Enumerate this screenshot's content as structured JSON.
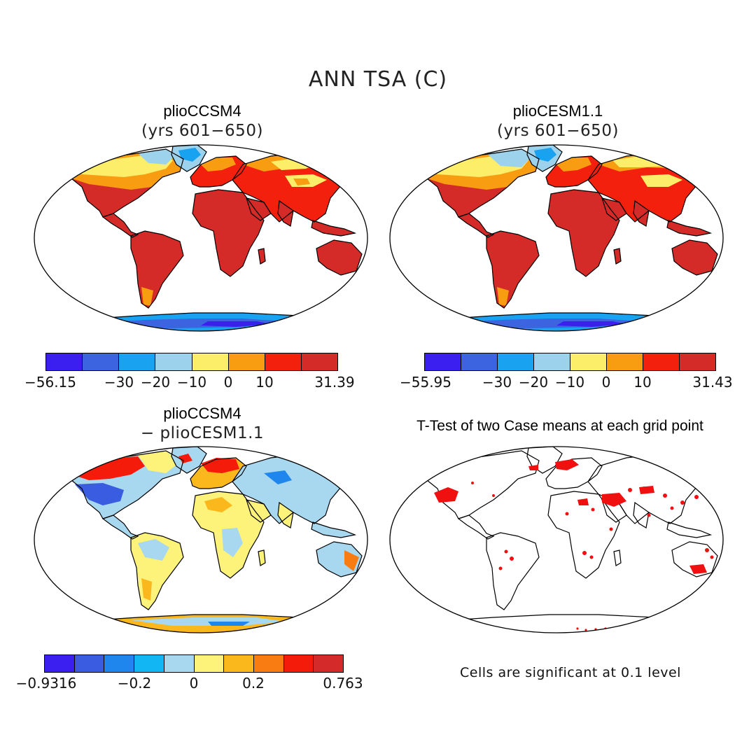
{
  "figure": {
    "title": "ANN TSA (C)",
    "panels": {
      "top_left": {
        "title": "plioCCSM4",
        "subtitle": "(yrs 601−650)"
      },
      "top_right": {
        "title": "plioCESM1.1",
        "subtitle": "(yrs 601−650)"
      },
      "bottom_left": {
        "title": "plioCCSM4",
        "subtitle": "− plioCESM1.1"
      },
      "bottom_right": {
        "title": "T-Test of two Case means at each grid point",
        "note": "Cells are significant at 0.1 level"
      }
    },
    "colorbars": {
      "cb1": {
        "colors": [
          "#3b1ff0",
          "#3d64e0",
          "#19a2f0",
          "#9dd2ec",
          "#fdee6a",
          "#f89d12",
          "#f4200e",
          "#d42a28"
        ],
        "labels": [
          "−56.15",
          "−30",
          "−20",
          "−10",
          "0",
          "10",
          "31.39"
        ]
      },
      "cb2": {
        "colors": [
          "#3b1ff0",
          "#3d64e0",
          "#19a2f0",
          "#9dd2ec",
          "#fdee6a",
          "#f89d12",
          "#f4200e",
          "#d42a28"
        ],
        "labels": [
          "−55.95",
          "−30",
          "−20",
          "−10",
          "0",
          "10",
          "31.43"
        ]
      },
      "cb3": {
        "colors": [
          "#3b1ff0",
          "#3a5ce0",
          "#1f86ee",
          "#12b6f2",
          "#a8d8f0",
          "#fdf27a",
          "#fbb81c",
          "#f97c12",
          "#f51b0a",
          "#d42a2a"
        ],
        "labels": [
          "−0.9316",
          "−0.2",
          "0",
          "0.2",
          "0.763"
        ]
      }
    }
  },
  "chart_data": [
    {
      "type": "heatmap",
      "panel": "top_left",
      "title": "plioCCSM4 (yrs 601−650)",
      "variable": "ANN TSA (C)",
      "units": "C",
      "range": [
        -56.15,
        31.39
      ],
      "colorbar_levels": [
        -56.15,
        -30,
        -20,
        -10,
        0,
        10,
        31.39
      ]
    },
    {
      "type": "heatmap",
      "panel": "top_right",
      "title": "plioCESM1.1 (yrs 601−650)",
      "variable": "ANN TSA (C)",
      "units": "C",
      "range": [
        -55.95,
        31.43
      ],
      "colorbar_levels": [
        -55.95,
        -30,
        -20,
        -10,
        0,
        10,
        31.43
      ]
    },
    {
      "type": "heatmap",
      "panel": "bottom_left",
      "title": "plioCCSM4 − plioCESM1.1",
      "units": "C",
      "range": [
        -0.9316,
        0.763
      ],
      "colorbar_levels": [
        -0.9316,
        -0.2,
        0,
        0.2,
        0.763
      ]
    },
    {
      "type": "heatmap",
      "panel": "bottom_right",
      "title": "T-Test of two Case means at each grid point",
      "significance_level": 0.1
    }
  ]
}
